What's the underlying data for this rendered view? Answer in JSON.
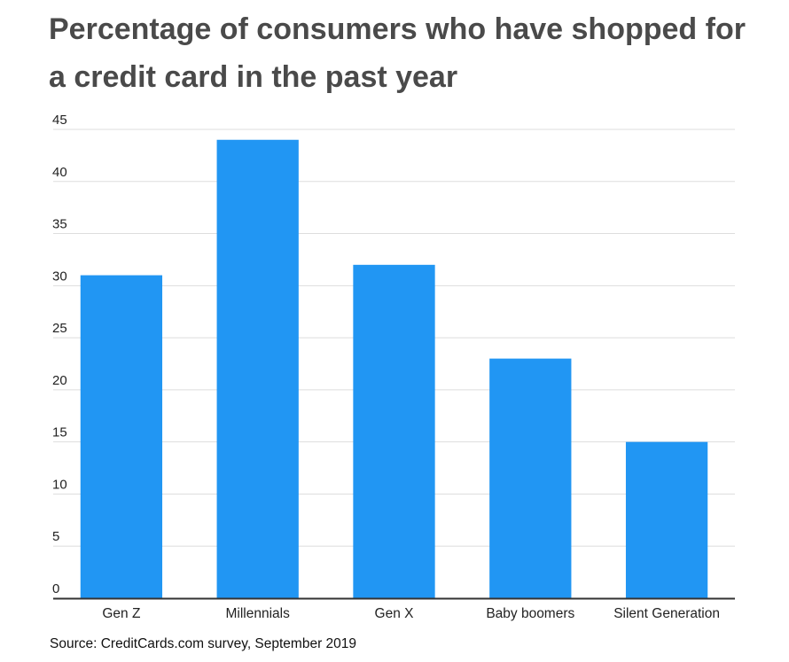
{
  "chart_data": {
    "type": "bar",
    "title": "Percentage of consumers who have shopped for a credit card in the past year",
    "categories": [
      "Gen Z",
      "Millennials",
      "Gen X",
      "Baby boomers",
      "Silent Generation"
    ],
    "values": [
      31,
      44,
      32,
      23,
      15
    ],
    "yticks": [
      0,
      5,
      10,
      15,
      20,
      25,
      30,
      35,
      40,
      45
    ],
    "ylim": [
      0,
      45
    ],
    "xlabel": "",
    "ylabel": "",
    "grid": true,
    "legend": "none",
    "bar_color": "#2196f3",
    "grid_color": "#dddddd",
    "axis_color": "#333333"
  },
  "source": "Source: CreditCards.com survey, September 2019"
}
